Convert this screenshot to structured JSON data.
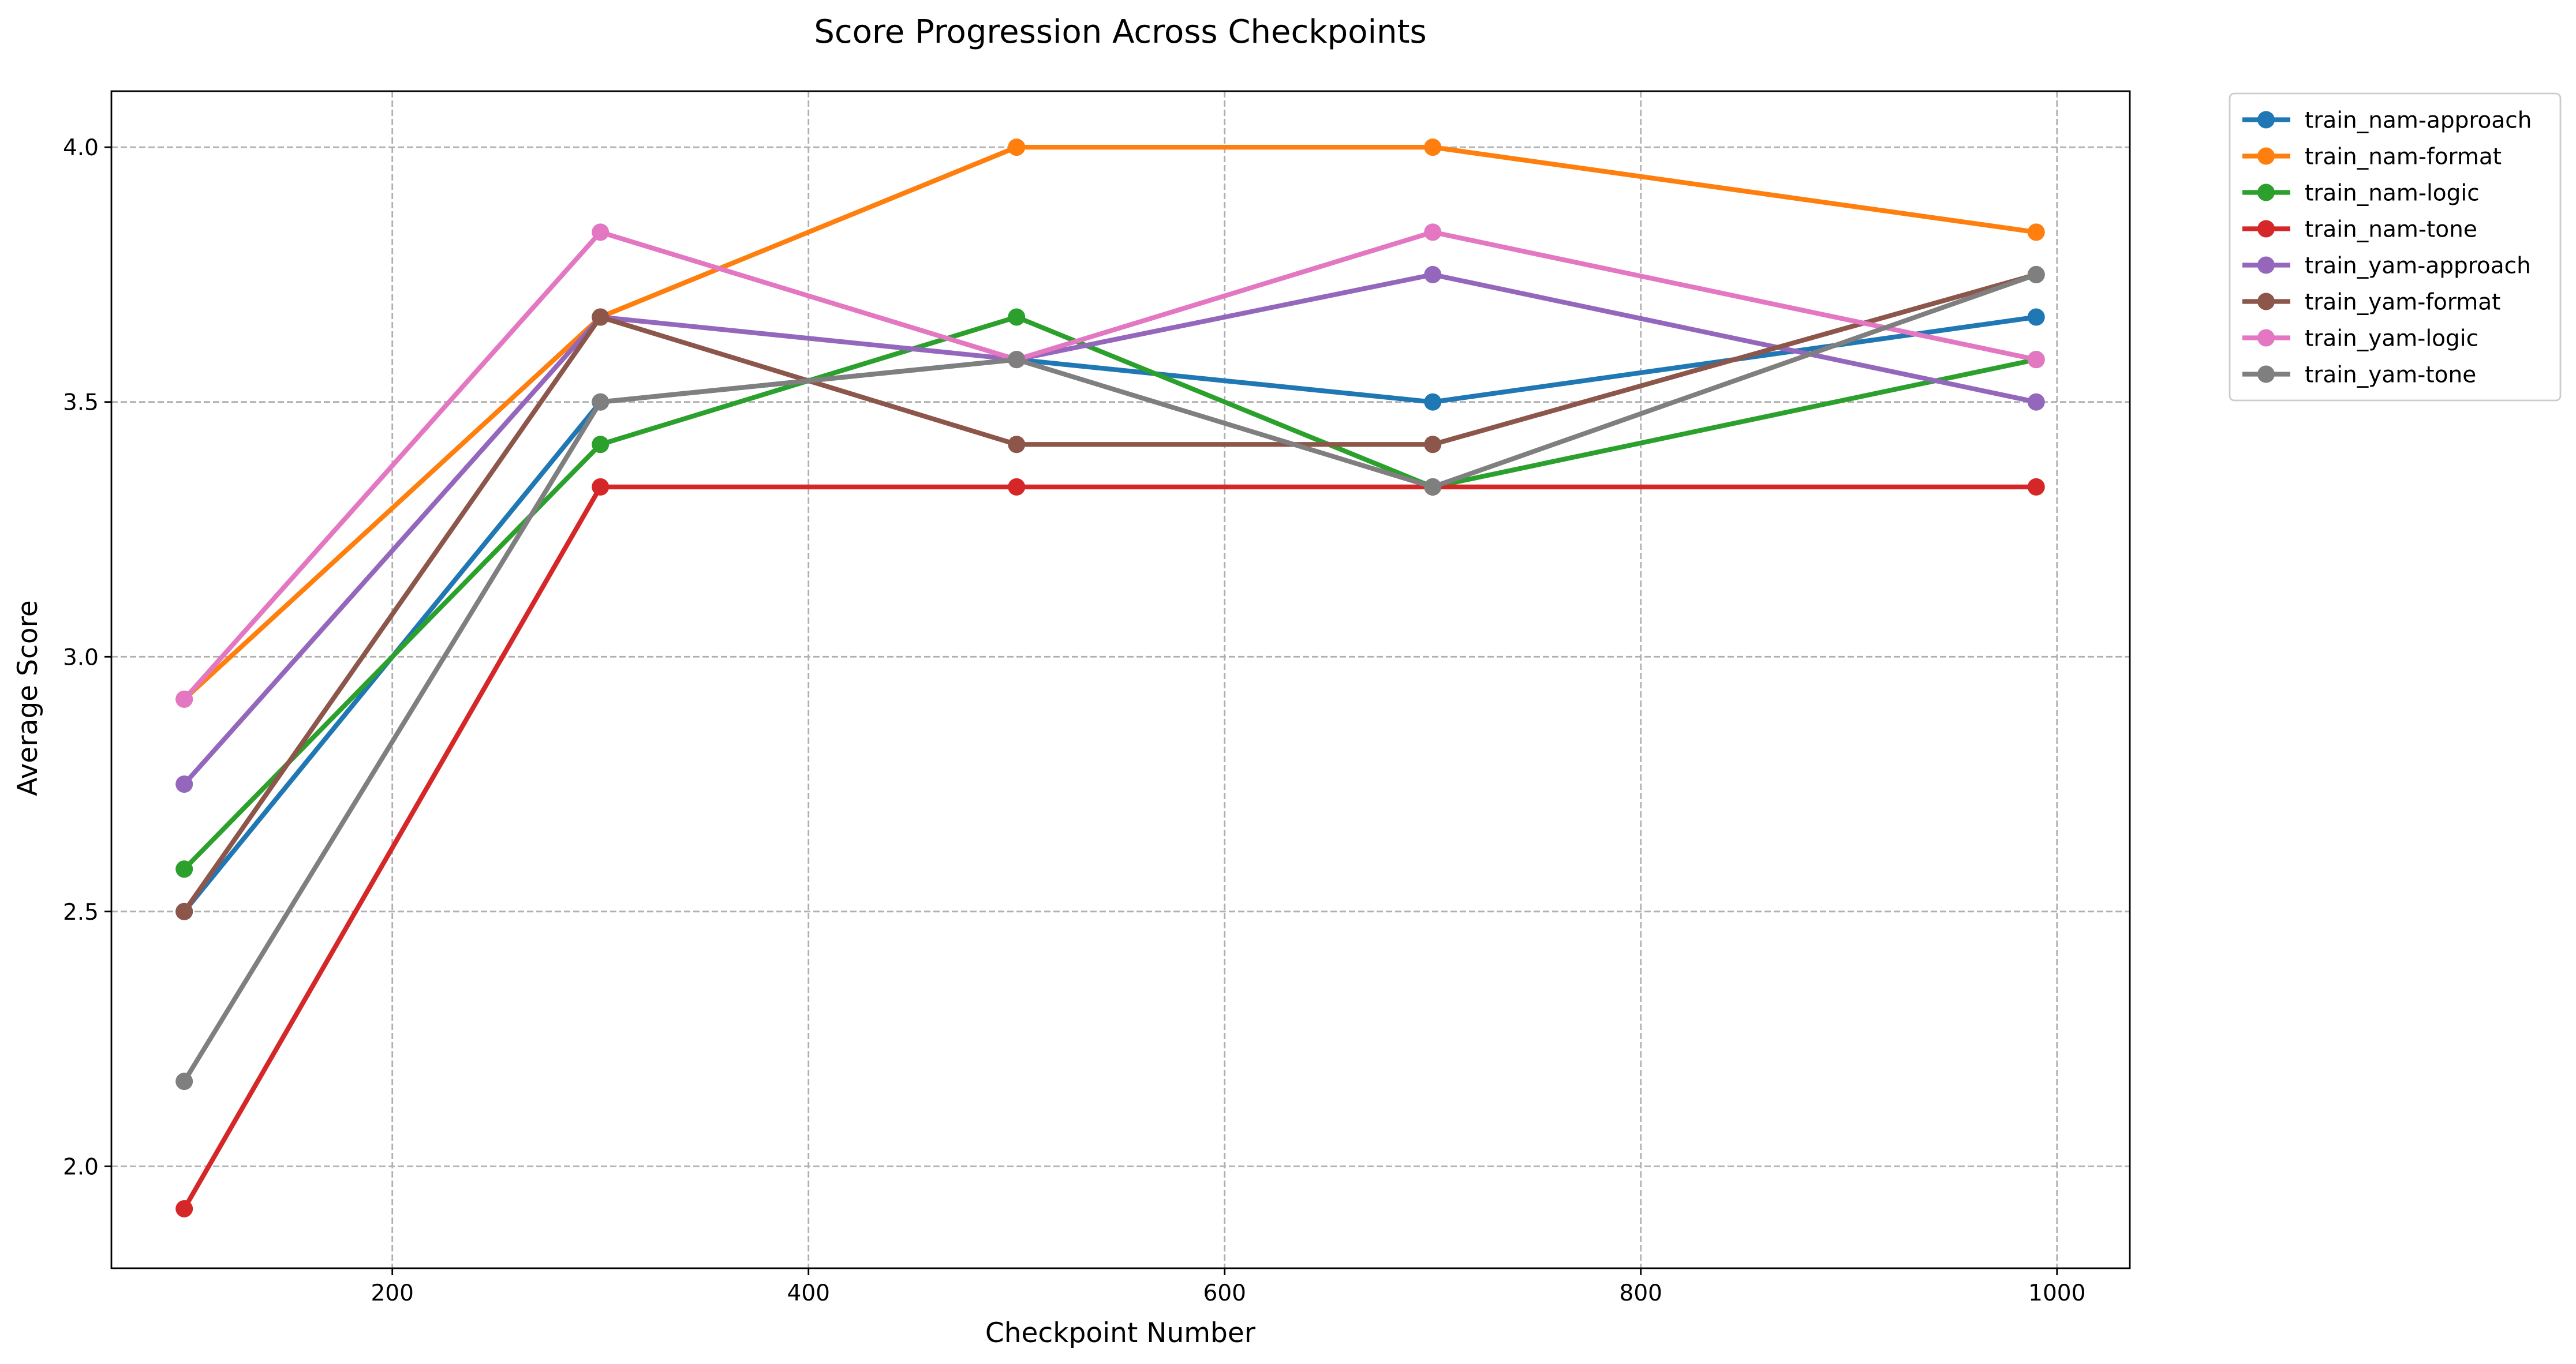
{
  "chart_data": {
    "type": "line",
    "title": "Score Progression Across Checkpoints",
    "xlabel": "Checkpoint Number",
    "ylabel": "Average Score",
    "x": [
      100,
      300,
      500,
      700,
      990
    ],
    "xlim": [
      65,
      1035
    ],
    "ylim": [
      1.8,
      4.11
    ],
    "xticks": [
      200,
      400,
      600,
      800,
      1000
    ],
    "yticks": [
      2.0,
      2.5,
      3.0,
      3.5,
      4.0
    ],
    "xtick_labels": [
      "200",
      "400",
      "600",
      "800",
      "1000"
    ],
    "ytick_labels": [
      "2.0",
      "2.5",
      "3.0",
      "3.5",
      "4.0"
    ],
    "grid": true,
    "legend_position": "outside-top-right",
    "series": [
      {
        "name": "train_nam-approach",
        "color": "#1f77b4",
        "values": [
          2.5,
          3.5,
          3.5833,
          3.5,
          3.6667
        ]
      },
      {
        "name": "train_nam-format",
        "color": "#ff7f0e",
        "values": [
          2.9167,
          3.6667,
          4.0,
          4.0,
          3.8333
        ]
      },
      {
        "name": "train_nam-logic",
        "color": "#2ca02c",
        "values": [
          2.5833,
          3.4167,
          3.6667,
          3.3333,
          3.5833
        ]
      },
      {
        "name": "train_nam-tone",
        "color": "#d62728",
        "values": [
          1.9167,
          3.3333,
          3.3333,
          3.3333,
          3.3333
        ]
      },
      {
        "name": "train_yam-approach",
        "color": "#9467bd",
        "values": [
          2.75,
          3.6667,
          3.5833,
          3.75,
          3.5
        ]
      },
      {
        "name": "train_yam-format",
        "color": "#8c564b",
        "values": [
          2.5,
          3.6667,
          3.4167,
          3.4167,
          3.75
        ]
      },
      {
        "name": "train_yam-logic",
        "color": "#e377c2",
        "values": [
          2.9167,
          3.8333,
          3.5833,
          3.8333,
          3.5833
        ]
      },
      {
        "name": "train_yam-tone",
        "color": "#7f7f7f",
        "values": [
          2.1667,
          3.5,
          3.5833,
          3.3333,
          3.75
        ]
      }
    ]
  }
}
